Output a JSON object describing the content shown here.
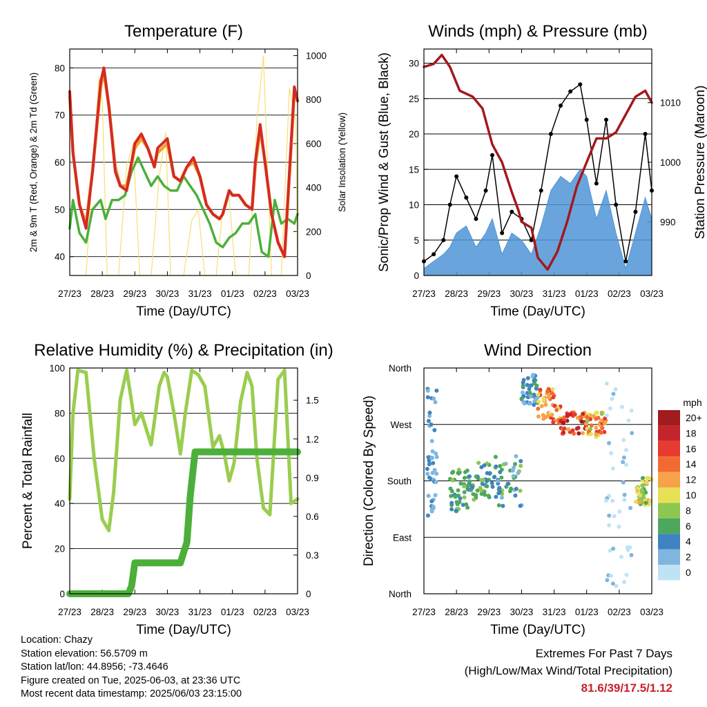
{
  "chart_data": [
    {
      "type": "line",
      "title": "Temperature (F)",
      "xlabel": "Time (Day/UTC)",
      "ylabel": "2m & 9m T (Red, Orange) & 2m Td (Green)",
      "ylabel_right": "Solar Insolation (Yellow)",
      "x_ticks": [
        "27/23",
        "28/23",
        "29/23",
        "30/23",
        "31/23",
        "01/23",
        "02/23",
        "03/23"
      ],
      "ylim": [
        36,
        84
      ],
      "y_ticks": [
        40,
        50,
        60,
        70,
        80
      ],
      "ylim_right": [
        0,
        1030
      ],
      "y_ticks_right": [
        0,
        200,
        400,
        600,
        800,
        1000
      ],
      "grid": "horizontal",
      "series": [
        {
          "name": "2m T",
          "color": "#d42a25",
          "x": [
            0,
            0.1,
            0.3,
            0.5,
            0.7,
            0.95,
            1.05,
            1.2,
            1.4,
            1.55,
            1.75,
            2.0,
            2.2,
            2.4,
            2.6,
            2.7,
            3.0,
            3.2,
            3.4,
            3.6,
            3.8,
            4.0,
            4.2,
            4.4,
            4.6,
            4.7,
            4.9,
            5.0,
            5.2,
            5.4,
            5.6,
            5.7,
            5.85,
            6.0,
            6.2,
            6.4,
            6.6,
            6.8,
            6.9,
            7.0
          ],
          "y": [
            75,
            62,
            51,
            46,
            58,
            77,
            80,
            72,
            58,
            55,
            54,
            64,
            66,
            63,
            59,
            63,
            65,
            57,
            56,
            59,
            61,
            57,
            51,
            49,
            48,
            49,
            54,
            53,
            53,
            51,
            50,
            60,
            68,
            60,
            49,
            43,
            40,
            64,
            76,
            73
          ]
        },
        {
          "name": "9m T",
          "color": "#f2a12e",
          "x": [
            0,
            0.1,
            0.3,
            0.5,
            0.7,
            0.95,
            1.05,
            1.2,
            1.4,
            1.55,
            1.75,
            2.0,
            2.2,
            2.4,
            2.6,
            2.7,
            3.0,
            3.2,
            3.4,
            3.6,
            3.8,
            4.0,
            4.2,
            4.4,
            4.6,
            4.7,
            4.9,
            5.0,
            5.2,
            5.4,
            5.6,
            5.7,
            5.85,
            6.0,
            6.2,
            6.4,
            6.6,
            6.8,
            6.9,
            7.0
          ],
          "y": [
            74,
            62,
            51,
            47,
            58,
            76,
            79,
            72,
            59,
            55,
            55,
            63,
            65,
            63,
            59,
            62,
            64,
            57,
            56,
            59,
            60,
            57,
            51,
            49,
            48,
            49,
            54,
            53,
            53,
            51,
            50,
            59,
            67,
            60,
            49,
            43,
            40,
            63,
            75,
            73
          ]
        },
        {
          "name": "2m Td",
          "color": "#4caf3a",
          "x": [
            0,
            0.1,
            0.3,
            0.5,
            0.7,
            0.95,
            1.1,
            1.3,
            1.5,
            1.7,
            1.9,
            2.1,
            2.3,
            2.5,
            2.7,
            2.9,
            3.1,
            3.3,
            3.5,
            3.7,
            3.9,
            4.1,
            4.3,
            4.5,
            4.7,
            4.9,
            5.1,
            5.3,
            5.5,
            5.7,
            5.9,
            6.1,
            6.3,
            6.5,
            6.7,
            6.9,
            7.0
          ],
          "y": [
            46,
            52,
            45,
            43,
            50,
            52,
            48,
            52,
            52,
            53,
            58,
            61,
            58,
            55,
            57,
            55,
            54,
            54,
            57,
            55,
            53,
            50,
            47,
            43,
            42,
            44,
            45,
            47,
            47,
            49,
            41,
            40,
            52,
            47,
            48,
            47,
            49
          ]
        },
        {
          "name": "Solar Insolation",
          "color": "#f7df6e",
          "axis": "right",
          "x": [
            0,
            0.5,
            0.75,
            0.9,
            1.0,
            1.15,
            1.5,
            1.75,
            1.95,
            2.15,
            2.5,
            2.75,
            2.95,
            3.1,
            3.5,
            3.75,
            3.95,
            4.15,
            4.5,
            4.7,
            4.9,
            5.1,
            5.5,
            5.75,
            5.95,
            6.2,
            6.5,
            6.75,
            6.95,
            7.0
          ],
          "y": [
            0,
            0,
            600,
            900,
            800,
            0,
            0,
            500,
            600,
            0,
            0,
            450,
            650,
            0,
            0,
            250,
            300,
            0,
            0,
            300,
            350,
            0,
            0,
            700,
            1000,
            0,
            0,
            850,
            700,
            0
          ]
        }
      ]
    },
    {
      "type": "line",
      "title": "Winds (mph) & Pressure (mb)",
      "xlabel": "Time (Day/UTC)",
      "ylabel": "Sonic/Prop Wind & Gust (Blue, Black)",
      "ylabel_right": "Station Pressure (Maroon)",
      "x_ticks": [
        "27/23",
        "28/23",
        "29/23",
        "30/23",
        "31/23",
        "01/23",
        "02/23",
        "03/23"
      ],
      "ylim": [
        0,
        32
      ],
      "y_ticks": [
        0,
        5,
        10,
        15,
        20,
        25,
        30
      ],
      "ylim_right": [
        981,
        1019
      ],
      "y_ticks_right": [
        990,
        1000,
        1010
      ],
      "grid": "horizontal",
      "series": [
        {
          "name": "Wind",
          "color": "#4f95d6",
          "x": [
            0,
            0.3,
            0.6,
            0.8,
            1.0,
            1.3,
            1.6,
            1.9,
            2.1,
            2.4,
            2.7,
            3.0,
            3.3,
            3.6,
            3.9,
            4.2,
            4.5,
            4.8,
            5.0,
            5.3,
            5.6,
            5.9,
            6.2,
            6.5,
            6.8,
            7.0
          ],
          "y": [
            1,
            2,
            3,
            4,
            6,
            7,
            4,
            6,
            8,
            3,
            6,
            5,
            3,
            7,
            12,
            14,
            13,
            15,
            14,
            8,
            12,
            6,
            1,
            6,
            11,
            8
          ]
        },
        {
          "name": "Gust",
          "color": "#000000",
          "x": [
            0,
            0.3,
            0.6,
            0.8,
            1.0,
            1.3,
            1.6,
            1.9,
            2.1,
            2.4,
            2.7,
            3.0,
            3.3,
            3.6,
            3.9,
            4.2,
            4.5,
            4.8,
            5.0,
            5.3,
            5.6,
            5.9,
            6.2,
            6.5,
            6.8,
            7.0
          ],
          "y": [
            2,
            3,
            5,
            10,
            14,
            11,
            8,
            12,
            17,
            6,
            9,
            8,
            5,
            12,
            20,
            24,
            26,
            27,
            22,
            13,
            22,
            10,
            2,
            9,
            20,
            12
          ]
        },
        {
          "name": "Station Pressure",
          "color": "#a3181d",
          "axis": "right",
          "x": [
            0,
            0.3,
            0.55,
            0.8,
            1.1,
            1.5,
            1.8,
            2.1,
            2.4,
            2.7,
            2.9,
            3.0,
            3.3,
            3.5,
            3.8,
            4.1,
            4.4,
            4.7,
            5.0,
            5.3,
            5.6,
            5.9,
            6.2,
            6.5,
            6.8,
            7.0
          ],
          "y": [
            1016,
            1016.5,
            1018,
            1016,
            1012,
            1011,
            1009,
            1003,
            1000,
            995,
            992,
            990,
            989,
            984,
            982,
            985,
            990,
            996,
            1000,
            1004,
            1004,
            1005,
            1008,
            1011,
            1012,
            1010
          ]
        }
      ]
    },
    {
      "type": "line",
      "title": "Relative Humidity (%) & Precipitation (in)",
      "xlabel": "Time (Day/UTC)",
      "ylabel": "Percent & Total Rainfall",
      "x_ticks": [
        "27/23",
        "28/23",
        "29/23",
        "30/23",
        "31/23",
        "01/23",
        "02/23",
        "03/23"
      ],
      "ylim": [
        0,
        100
      ],
      "y_ticks": [
        0,
        20,
        40,
        60,
        80,
        100
      ],
      "ylim_right": [
        0,
        1.75
      ],
      "y_ticks_right": [
        0.0,
        0.3,
        0.6,
        0.9,
        1.2,
        1.5
      ],
      "y_ticks_right_labels": [
        "0.0",
        "0.3",
        "0.6",
        "0.9",
        "1.2",
        "1.5"
      ],
      "grid": "horizontal",
      "series": [
        {
          "name": "Relative Humidity",
          "color": "#9acd4f",
          "x": [
            0,
            0.1,
            0.25,
            0.5,
            0.75,
            1.0,
            1.2,
            1.35,
            1.55,
            1.75,
            1.9,
            2.0,
            2.2,
            2.5,
            2.75,
            2.9,
            3.0,
            3.2,
            3.4,
            3.55,
            3.75,
            3.95,
            4.15,
            4.4,
            4.6,
            4.75,
            4.9,
            5.05,
            5.25,
            5.45,
            5.6,
            5.75,
            5.95,
            6.15,
            6.4,
            6.6,
            6.8,
            7.0
          ],
          "y": [
            42,
            80,
            99,
            98,
            60,
            33,
            28,
            45,
            86,
            99,
            85,
            75,
            80,
            66,
            92,
            98,
            96,
            80,
            62,
            80,
            99,
            97,
            92,
            65,
            70,
            62,
            50,
            58,
            85,
            98,
            92,
            60,
            38,
            35,
            95,
            99,
            40,
            42
          ]
        },
        {
          "name": "Total Precipitation",
          "color": "#4caf3a",
          "axis": "right",
          "x": [
            0,
            1.8,
            1.9,
            2.0,
            2.5,
            3.0,
            3.4,
            3.6,
            3.7,
            3.85,
            4.2,
            5.0,
            6.0,
            7.0
          ],
          "y": [
            0,
            0,
            0.06,
            0.24,
            0.24,
            0.24,
            0.24,
            0.4,
            0.75,
            1.1,
            1.1,
            1.1,
            1.1,
            1.1
          ]
        }
      ]
    },
    {
      "type": "scatter",
      "title": "Wind Direction",
      "xlabel": "Time (Day/UTC)",
      "ylabel": "Direction (Colored By Speed)",
      "x_ticks": [
        "27/23",
        "28/23",
        "29/23",
        "30/23",
        "31/23",
        "01/23",
        "02/23",
        "03/23"
      ],
      "ylim": [
        0,
        360
      ],
      "y_ticks_labels": [
        "North",
        "East",
        "South",
        "West",
        "North"
      ],
      "y_ticks": [
        0,
        90,
        180,
        270,
        360
      ],
      "grid": "horizontal",
      "legend_title": "mph",
      "legend_position": "right",
      "legend_labels": [
        "20+",
        "18",
        "16",
        "14",
        "12",
        "10",
        "8",
        "6",
        "4",
        "2",
        "0"
      ],
      "legend_colors": [
        "#a01c1f",
        "#c4242b",
        "#e63b30",
        "#f26a32",
        "#f7a24a",
        "#e6e055",
        "#8cc751",
        "#4ea75e",
        "#3f84c0",
        "#7fb6df",
        "#bfe3f5"
      ],
      "clusters": [
        {
          "x": [
            0.1,
            0.4
          ],
          "y": [
            120,
            340
          ],
          "speed": [
            2,
            4
          ]
        },
        {
          "x": [
            0.8,
            1.4
          ],
          "y": [
            130,
            200
          ],
          "speed": [
            4,
            8
          ]
        },
        {
          "x": [
            1.4,
            2.2
          ],
          "y": [
            150,
            210
          ],
          "speed": [
            4,
            8
          ]
        },
        {
          "x": [
            2.2,
            3.0
          ],
          "y": [
            140,
            220
          ],
          "speed": [
            2,
            8
          ]
        },
        {
          "x": [
            3.0,
            3.5
          ],
          "y": [
            300,
            350
          ],
          "speed": [
            2,
            6
          ]
        },
        {
          "x": [
            3.5,
            4.2
          ],
          "y": [
            270,
            330
          ],
          "speed": [
            10,
            16
          ]
        },
        {
          "x": [
            4.2,
            5.0
          ],
          "y": [
            255,
            290
          ],
          "speed": [
            12,
            20
          ]
        },
        {
          "x": [
            5.0,
            5.6
          ],
          "y": [
            250,
            290
          ],
          "speed": [
            8,
            16
          ]
        },
        {
          "x": [
            5.6,
            6.4
          ],
          "y": [
            10,
            340
          ],
          "speed": [
            0,
            2
          ]
        },
        {
          "x": [
            6.5,
            7.0
          ],
          "y": [
            140,
            185
          ],
          "speed": [
            6,
            12
          ]
        }
      ]
    }
  ],
  "info": {
    "location": "Location: Chazy",
    "elevation": "Station elevation: 56.5709 m",
    "latlon": "Station lat/lon: 44.8956; -73.4646",
    "created": "Figure created on Tue, 2025-06-03, at 23:36 UTC",
    "recent": "Most recent data timestamp: 2025/06/03 23:15:00",
    "extremes_title": "Extremes For Past 7 Days",
    "extremes_subtitle": "(High/Low/Max Wind/Total Precipitation)",
    "extremes_value": "81.6/39/17.5/1.12"
  }
}
